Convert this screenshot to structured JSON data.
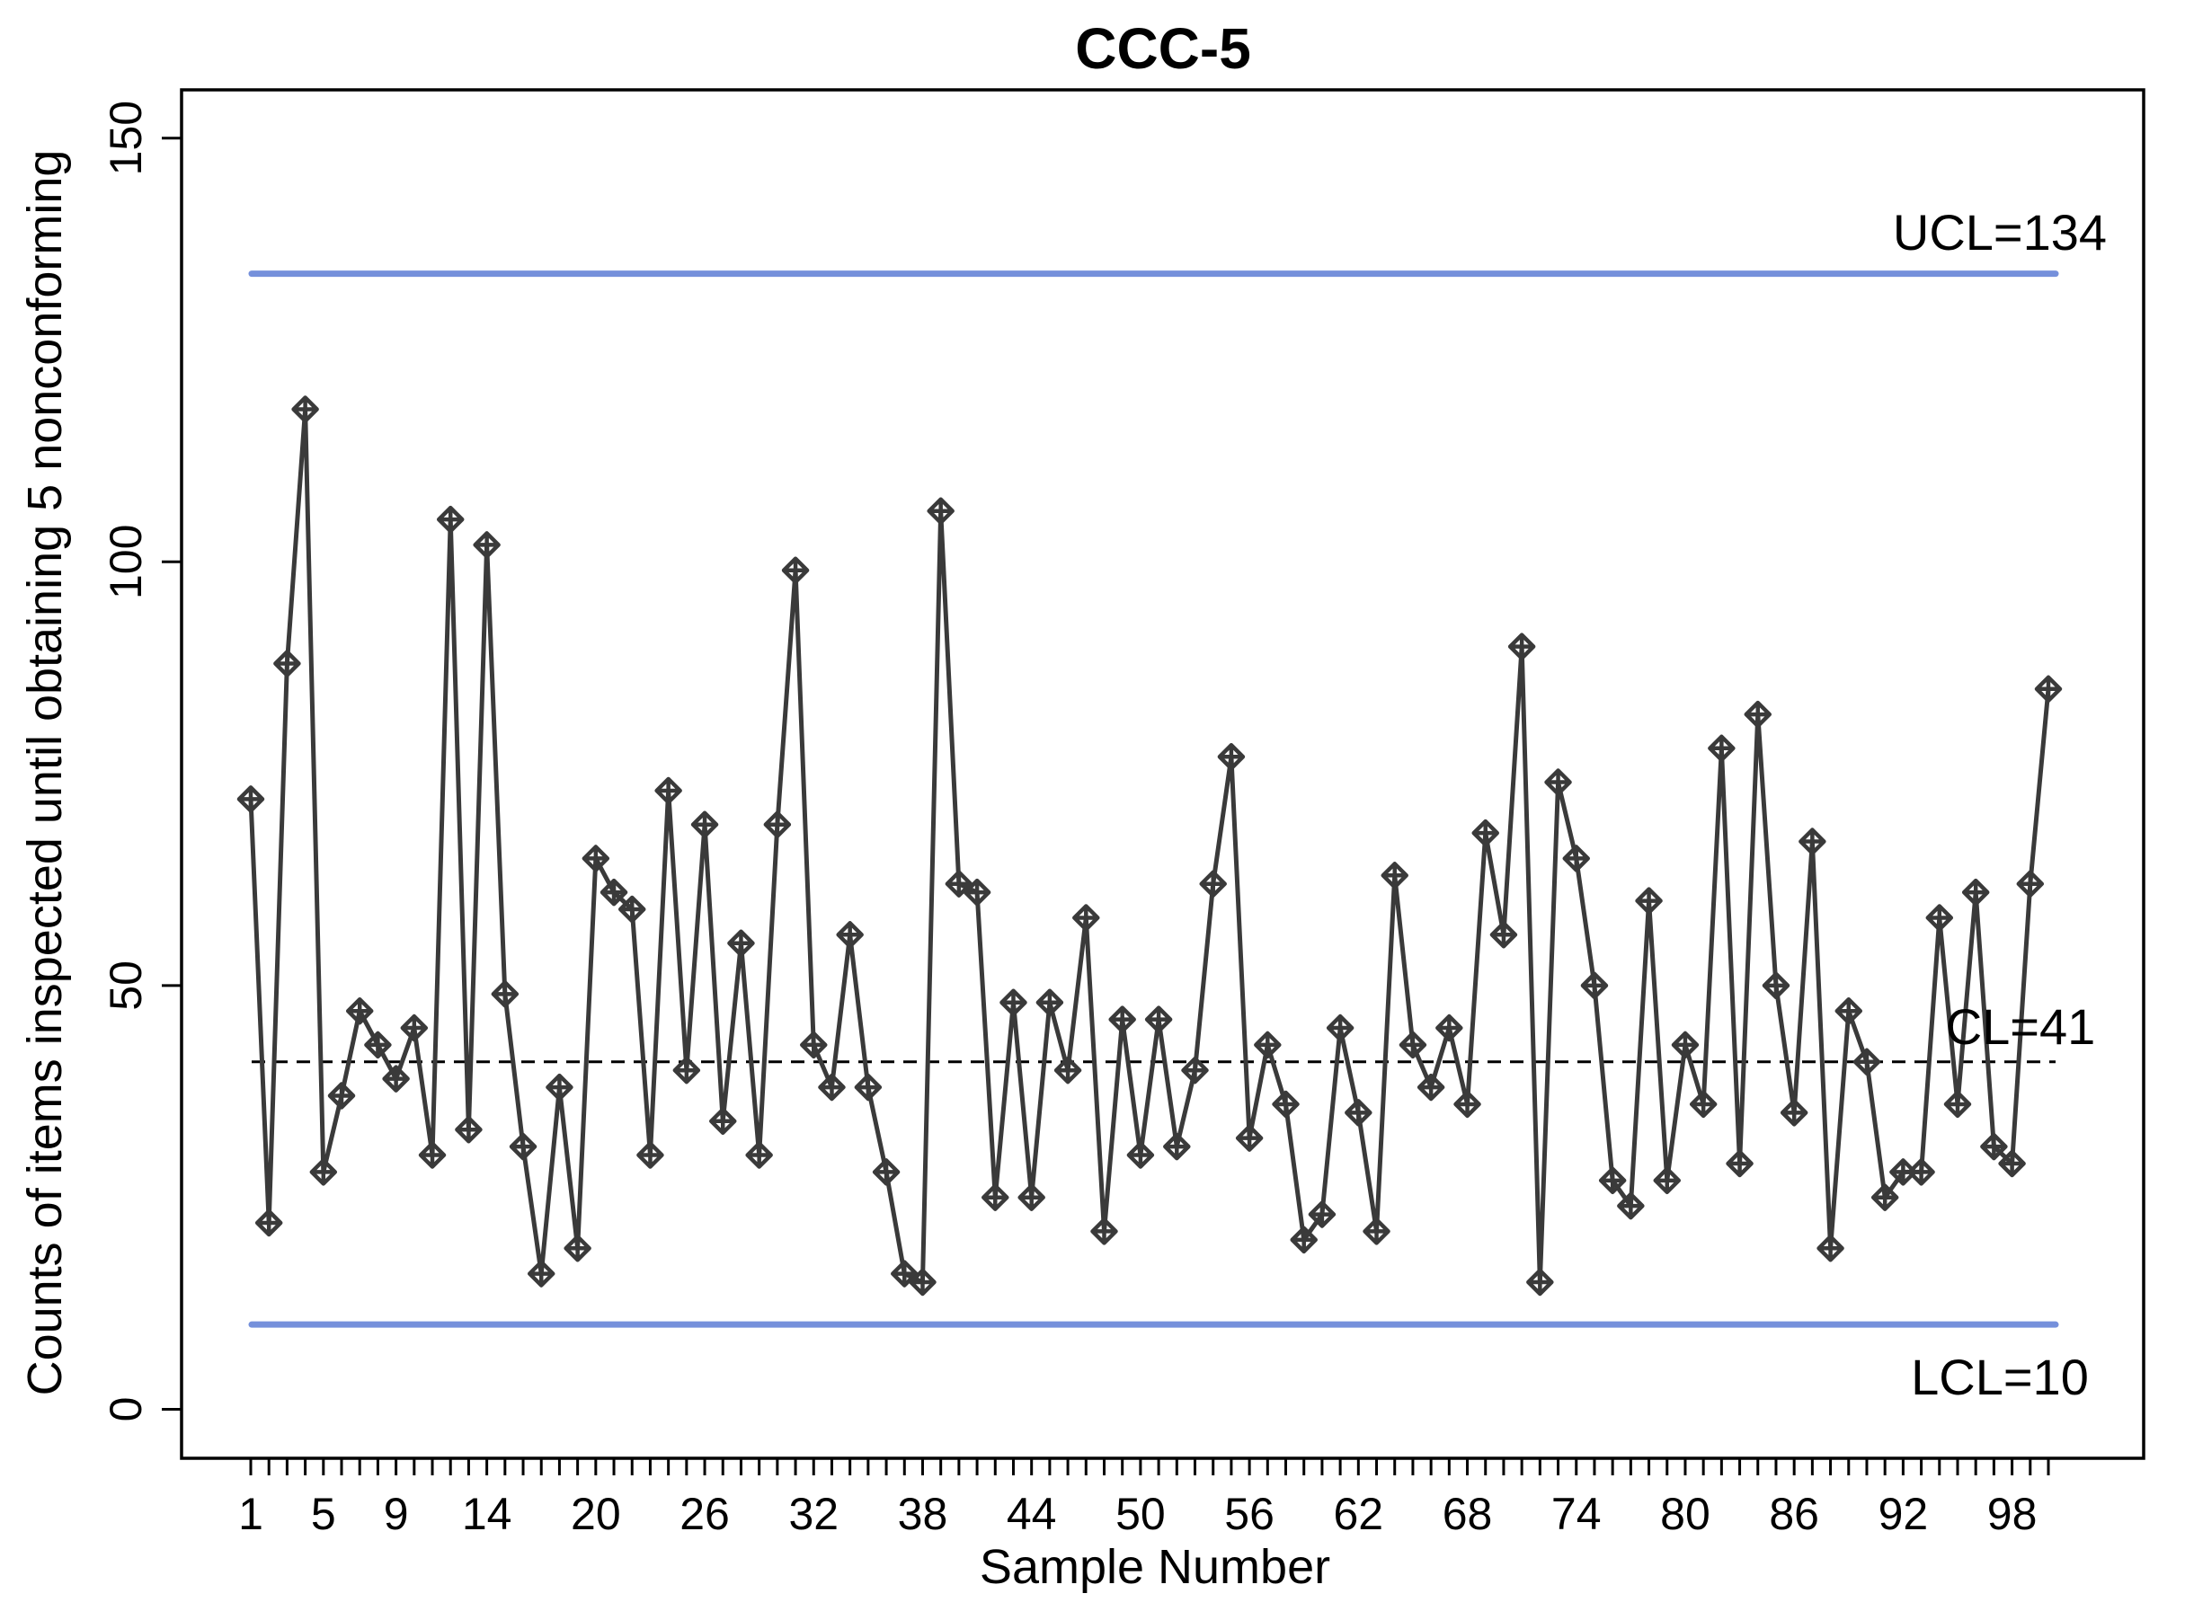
{
  "chart_data": {
    "type": "line",
    "title": "CCC-5",
    "xlabel": "Sample Number",
    "ylabel": "Counts of items inspected until obtaining 5 nonconforming",
    "series_name": "counts-until-5-nonconforming",
    "marker": "diamond-plus",
    "grid": false,
    "legend": "none",
    "x_start": 1,
    "x": [
      1,
      2,
      3,
      4,
      5,
      6,
      7,
      8,
      9,
      10,
      11,
      12,
      13,
      14,
      15,
      16,
      17,
      18,
      19,
      20,
      21,
      22,
      23,
      24,
      25,
      26,
      27,
      28,
      29,
      30,
      31,
      32,
      33,
      34,
      35,
      36,
      37,
      38,
      39,
      40,
      41,
      42,
      43,
      44,
      45,
      46,
      47,
      48,
      49,
      50,
      51,
      52,
      53,
      54,
      55,
      56,
      57,
      58,
      59,
      60,
      61,
      62,
      63,
      64,
      65,
      66,
      67,
      68,
      69,
      70,
      71,
      72,
      73,
      74,
      75,
      76,
      77,
      78,
      79,
      80,
      81,
      82,
      83,
      84,
      85,
      86,
      87,
      88,
      89,
      90,
      91,
      92,
      93,
      94,
      95,
      96,
      97,
      98,
      99,
      100
    ],
    "values": [
      72,
      22,
      88,
      118,
      28,
      37,
      47,
      43,
      39,
      45,
      30,
      105,
      33,
      102,
      49,
      31,
      16,
      38,
      19,
      65,
      61,
      59,
      30,
      73,
      40,
      69,
      34,
      55,
      30,
      69,
      99,
      43,
      38,
      56,
      38,
      28,
      16,
      15,
      106,
      62,
      61,
      25,
      48,
      25,
      48,
      40,
      58,
      21,
      46,
      30,
      46,
      31,
      40,
      62,
      77,
      32,
      43,
      36,
      20,
      23,
      45,
      35,
      21,
      63,
      43,
      38,
      45,
      36,
      68,
      56,
      90,
      15,
      74,
      65,
      50,
      27,
      24,
      60,
      27,
      43,
      36,
      78,
      29,
      82,
      50,
      35,
      67,
      19,
      47,
      41,
      25,
      28,
      28,
      58,
      36,
      61,
      31,
      29,
      62,
      85
    ],
    "ylim": [
      0,
      150
    ],
    "y_ticks": [
      0,
      50,
      100,
      150
    ],
    "y_tick_labels": [
      "0",
      "50",
      "100",
      "150"
    ],
    "x_tick_labels": [
      1,
      5,
      9,
      14,
      20,
      26,
      32,
      38,
      44,
      50,
      56,
      62,
      68,
      74,
      80,
      86,
      92,
      98
    ],
    "limits": {
      "ucl": {
        "value": 134,
        "label": "UCL=134"
      },
      "cl": {
        "value": 41,
        "label": "CL=41"
      },
      "lcl": {
        "value": 10,
        "label": "LCL=10"
      }
    },
    "colors": {
      "limit_line": "#7590db",
      "center_line": "#000000",
      "series": "#3a3a3a",
      "frame": "#000000",
      "background": "#ffffff"
    }
  }
}
